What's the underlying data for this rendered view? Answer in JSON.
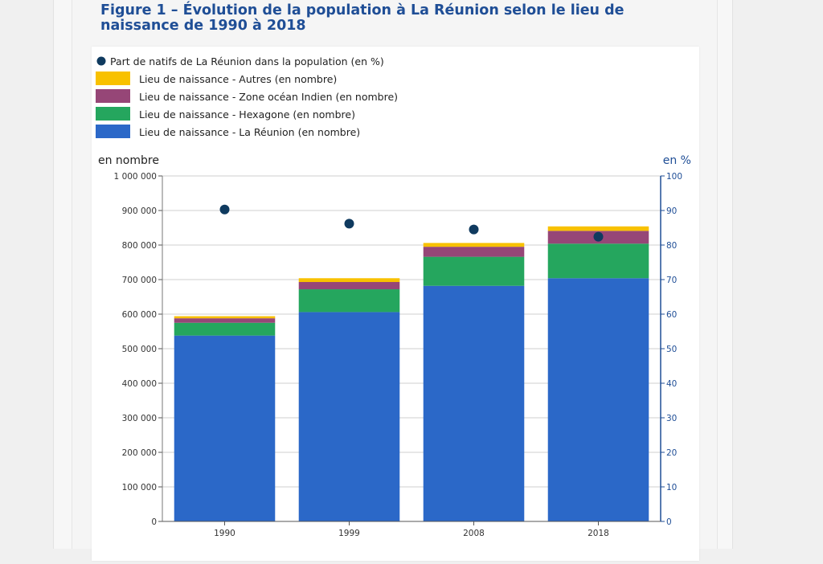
{
  "figure": {
    "title": "Figure 1 – Évolution de la population à La Réunion selon le lieu de naissance de 1990 à 2018"
  },
  "colors": {
    "la_reunion": "#2b68c8",
    "hexagone": "#25a65e",
    "zone_ocean_indien": "#964677",
    "autres": "#f8c100",
    "part_natifs": "#0f3a5f",
    "title": "#1f4e96",
    "right_axis": "#1f4e96"
  },
  "chart_data": {
    "type": "bar",
    "stacked": true,
    "title": "",
    "categories": [
      "1990",
      "1999",
      "2008",
      "2018"
    ],
    "xlabel": "",
    "ylabel": "en nombre",
    "ylabel_right": "en %",
    "ylim": [
      0,
      1000000
    ],
    "ylim_right": [
      0,
      100
    ],
    "y_ticks": [
      0,
      100000,
      200000,
      300000,
      400000,
      500000,
      600000,
      700000,
      800000,
      900000,
      1000000
    ],
    "y_tick_labels": [
      "0",
      "100 000",
      "200 000",
      "300 000",
      "400 000",
      "500 000",
      "600 000",
      "700 000",
      "800 000",
      "900 000",
      "1 000 000"
    ],
    "y_right_ticks": [
      0,
      10,
      20,
      30,
      40,
      50,
      60,
      70,
      80,
      90,
      100
    ],
    "y_right_tick_labels": [
      "0",
      "10",
      "20",
      "30",
      "40",
      "50",
      "60",
      "70",
      "80",
      "90",
      "100"
    ],
    "grid": true,
    "legend_position": "top-left",
    "series": [
      {
        "name": "Lieu de naissance - La Réunion (en nombre)",
        "kind": "bar",
        "axis": "left",
        "color_key": "la_reunion",
        "values": [
          538000,
          606000,
          682000,
          704000
        ]
      },
      {
        "name": "Lieu de naissance - Hexagone (en nombre)",
        "kind": "bar",
        "axis": "left",
        "color_key": "hexagone",
        "values": [
          37000,
          66000,
          84000,
          100000
        ]
      },
      {
        "name": "Lieu de naissance - Zone océan Indien (en nombre)",
        "kind": "bar",
        "axis": "left",
        "color_key": "zone_ocean_indien",
        "values": [
          13000,
          21000,
          29000,
          37000
        ]
      },
      {
        "name": "Lieu de naissance - Autres (en nombre)",
        "kind": "bar",
        "axis": "left",
        "color_key": "autres",
        "values": [
          6000,
          11000,
          11000,
          13000
        ]
      },
      {
        "name": "Part de natifs de La Réunion dans la population (en %)",
        "kind": "scatter",
        "axis": "right",
        "color_key": "part_natifs",
        "values": [
          90.3,
          86.2,
          84.5,
          82.4
        ]
      }
    ],
    "legend_order": [
      4,
      3,
      2,
      1,
      0
    ]
  }
}
